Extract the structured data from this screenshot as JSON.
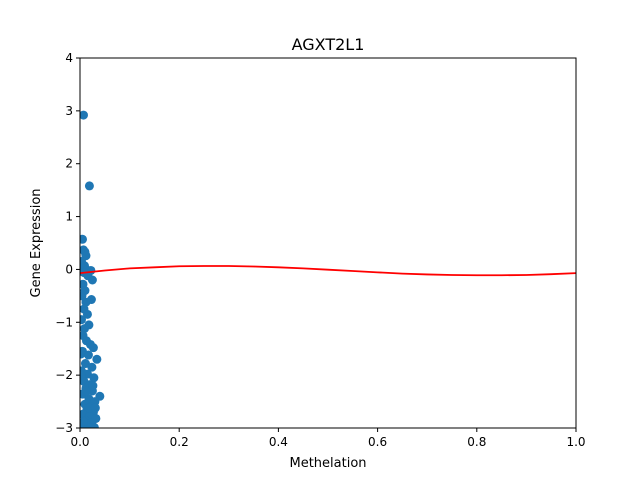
{
  "chart_data": {
    "type": "scatter",
    "title": "AGXT2L1",
    "xlabel": "Methelation",
    "ylabel": "Gene Expression",
    "xlim": [
      0.0,
      1.0
    ],
    "ylim": [
      -3,
      4
    ],
    "xticks": [
      "0.0",
      "0.2",
      "0.4",
      "0.6",
      "0.8",
      "1.0"
    ],
    "yticks": [
      "−3",
      "−2",
      "−1",
      "0",
      "1",
      "2",
      "3",
      "4"
    ],
    "grid": false,
    "point_color": "#1f77b4",
    "line_color": "#ff0000",
    "points": [
      [
        0.007,
        2.92
      ],
      [
        0.019,
        1.58
      ],
      [
        0.005,
        0.57
      ],
      [
        0.007,
        0.37
      ],
      [
        0.01,
        0.33
      ],
      [
        0.012,
        0.26
      ],
      [
        0.003,
        0.15
      ],
      [
        0.009,
        0.07
      ],
      [
        0.004,
        0.02
      ],
      [
        0.014,
        -0.01
      ],
      [
        0.022,
        -0.02
      ],
      [
        0.008,
        -0.06
      ],
      [
        0.016,
        -0.12
      ],
      [
        0.025,
        -0.2
      ],
      [
        0.006,
        -0.28
      ],
      [
        0.01,
        -0.4
      ],
      [
        0.004,
        -0.5
      ],
      [
        0.023,
        -0.57
      ],
      [
        0.012,
        -0.62
      ],
      [
        0.008,
        -0.75
      ],
      [
        0.015,
        -0.85
      ],
      [
        0.003,
        -0.95
      ],
      [
        0.018,
        -1.05
      ],
      [
        0.009,
        -1.12
      ],
      [
        0.006,
        -1.25
      ],
      [
        0.013,
        -1.35
      ],
      [
        0.021,
        -1.42
      ],
      [
        0.027,
        -1.48
      ],
      [
        0.005,
        -1.55
      ],
      [
        0.017,
        -1.62
      ],
      [
        0.034,
        -1.7
      ],
      [
        0.011,
        -1.78
      ],
      [
        0.024,
        -1.85
      ],
      [
        0.003,
        -1.92
      ],
      [
        0.015,
        -1.98
      ],
      [
        0.028,
        -2.05
      ],
      [
        0.008,
        -2.12
      ],
      [
        0.02,
        -2.18
      ],
      [
        0.012,
        -2.25
      ],
      [
        0.025,
        -2.3
      ],
      [
        0.005,
        -2.36
      ],
      [
        0.04,
        -2.4
      ],
      [
        0.018,
        -2.45
      ],
      [
        0.03,
        -2.5
      ],
      [
        0.01,
        -2.55
      ],
      [
        0.022,
        -2.6
      ],
      [
        0.014,
        -2.65
      ],
      [
        0.027,
        -2.7
      ],
      [
        0.006,
        -2.74
      ],
      [
        0.019,
        -2.78
      ],
      [
        0.032,
        -2.82
      ],
      [
        0.011,
        -2.86
      ],
      [
        0.024,
        -2.9
      ],
      [
        0.003,
        -2.93
      ],
      [
        0.016,
        -2.96
      ],
      [
        0.029,
        -2.99
      ],
      [
        0.008,
        -2.99
      ],
      [
        0.021,
        -2.99
      ],
      [
        0.013,
        -2.3
      ],
      [
        0.002,
        -2.0
      ],
      [
        0.002,
        -1.6
      ],
      [
        0.026,
        -2.2
      ],
      [
        0.018,
        -2.62
      ],
      [
        0.007,
        -2.88
      ],
      [
        0.031,
        -2.62
      ]
    ],
    "fit_line": {
      "x": [
        0.0,
        0.05,
        0.1,
        0.15,
        0.2,
        0.25,
        0.3,
        0.35,
        0.4,
        0.45,
        0.5,
        0.55,
        0.6,
        0.65,
        0.7,
        0.75,
        0.8,
        0.85,
        0.9,
        0.95,
        1.0
      ],
      "y": [
        -0.07,
        -0.02,
        0.02,
        0.04,
        0.06,
        0.065,
        0.065,
        0.055,
        0.04,
        0.02,
        -0.005,
        -0.03,
        -0.055,
        -0.08,
        -0.095,
        -0.105,
        -0.11,
        -0.11,
        -0.105,
        -0.09,
        -0.07
      ]
    }
  }
}
